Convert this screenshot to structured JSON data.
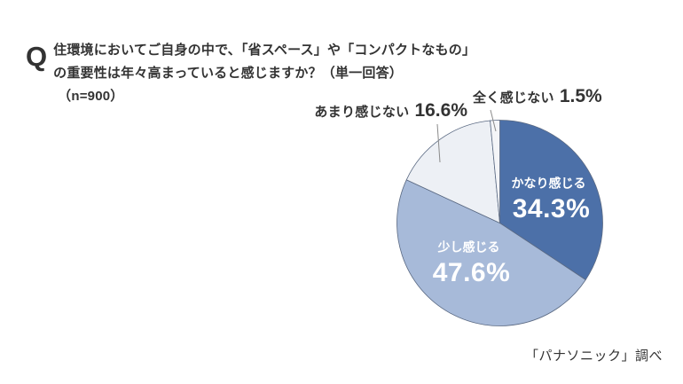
{
  "header": {
    "q_mark": "Q",
    "question_line1": "住環境においてご自身の中で、「省スペース」や「コンパクトなもの」",
    "question_line2": "の重要性は年々高まっていると感じますか？（単一回答）",
    "sample_size": "（n=900）"
  },
  "chart_data": {
    "type": "pie",
    "unit": "%",
    "direction": "clockwise",
    "start_angle_deg": 0,
    "total": 100,
    "slices": [
      {
        "id": "kanari-kanjiru",
        "label": "かなり感じる",
        "value": 34.3,
        "display": "34.3%",
        "color": "#4C70A8",
        "label_inside": true,
        "label_color": "#FFFFFF"
      },
      {
        "id": "sukoshi-kanjiru",
        "label": "少し感じる",
        "value": 47.6,
        "display": "47.6%",
        "color": "#A7BAD9",
        "label_inside": true,
        "label_color": "#FFFFFF"
      },
      {
        "id": "amari-kanjinai",
        "label": "あまり感じない",
        "value": 16.6,
        "display": "16.6%",
        "color": "#EDF0F5",
        "label_inside": false,
        "label_color": "#333333"
      },
      {
        "id": "mattaku-kanjinai",
        "label": "全く感じない",
        "value": 1.5,
        "display": "1.5%",
        "color": "#F4F5F8",
        "label_inside": false,
        "label_color": "#333333"
      }
    ],
    "layout": {
      "center": {
        "x": 563.5,
        "y": 251.5
      },
      "radius": 116,
      "slice_stroke": {
        "color": "#5A6982",
        "width": 0.8
      },
      "inside_labels": [
        {
          "slice": 0,
          "name_dx": 55,
          "name_dy": -45,
          "value_dx": 58,
          "value_dy": -16
        },
        {
          "slice": 1,
          "name_dx": -35,
          "name_dy": 27,
          "value_dx": -32,
          "value_dy": 56
        }
      ]
    }
  },
  "footer": {
    "source": "「パナソニック」調べ"
  }
}
